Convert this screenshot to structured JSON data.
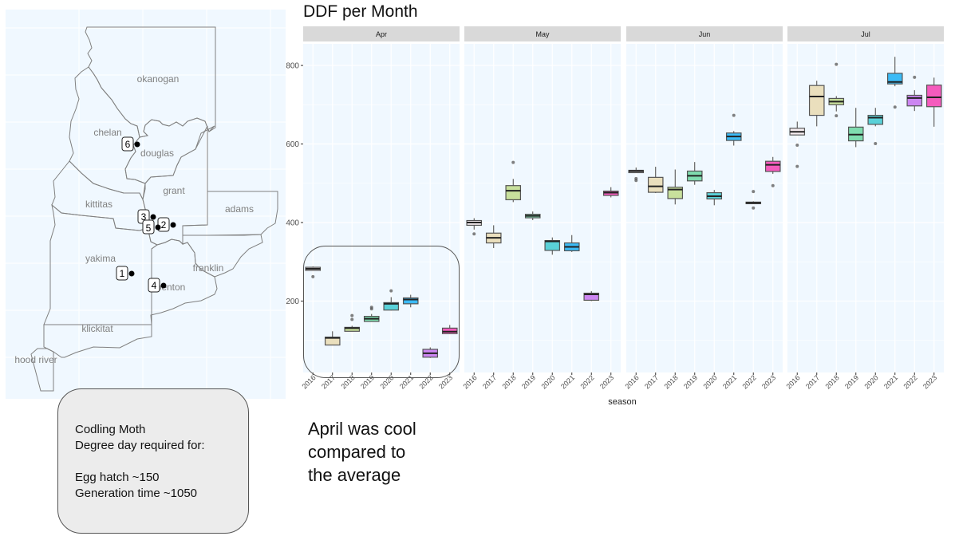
{
  "map": {
    "counties": [
      {
        "name": "okanogan"
      },
      {
        "name": "chelan"
      },
      {
        "name": "douglas"
      },
      {
        "name": "grant"
      },
      {
        "name": "kittitas"
      },
      {
        "name": "adams"
      },
      {
        "name": "yakima"
      },
      {
        "name": "franklin"
      },
      {
        "name": "benton"
      },
      {
        "name": "klickitat"
      },
      {
        "name": "hood river"
      }
    ],
    "sites": [
      {
        "label": "1"
      },
      {
        "label": "2"
      },
      {
        "label": "3"
      },
      {
        "label": "4"
      },
      {
        "label": "5"
      },
      {
        "label": "6"
      }
    ]
  },
  "info_box": {
    "line1": "Codling Moth",
    "line2": "Degree day required for:",
    "line3": "Egg hatch ~150",
    "line4": "Generation time ~1050"
  },
  "annotation": {
    "line1": "April was cool",
    "line2": "compared to",
    "line3": "the average"
  },
  "chart_data": {
    "type": "box",
    "title": "DDF per Month",
    "xlabel": "season",
    "ylabel": "",
    "ylim": [
      18,
      855
    ],
    "yticks": [
      200,
      400,
      600,
      800
    ],
    "grid": true,
    "facets": [
      "Apr",
      "May",
      "Jun",
      "Jul"
    ],
    "categories": [
      "2016",
      "2017",
      "2018",
      "2019",
      "2020",
      "2021",
      "2022",
      "2023"
    ],
    "colors": {
      "2016": "#f7eff2",
      "2017": "#eadfbd",
      "2018": "#c8e09c",
      "2019": "#7fdcaf",
      "2020": "#5ad1d8",
      "2021": "#3bbbf6",
      "2022": "#cc86f2",
      "2023": "#f55bbd"
    },
    "panels": [
      {
        "facet": "Apr",
        "boxes": [
          {
            "year": "2016",
            "min": 284,
            "q1": 278,
            "median": 282,
            "q3": 286,
            "max": 288,
            "outliers": [
              262
            ]
          },
          {
            "year": "2017",
            "min": 88,
            "q1": 88,
            "median": 106,
            "q3": 108,
            "max": 123,
            "outliers": []
          },
          {
            "year": "2018",
            "min": 123,
            "q1": 123,
            "median": 131,
            "q3": 133,
            "max": 137,
            "outliers": [
              153,
              163
            ]
          },
          {
            "year": "2019",
            "min": 148,
            "q1": 148,
            "median": 155,
            "q3": 161,
            "max": 167,
            "outliers": [
              180,
              184
            ]
          },
          {
            "year": "2020",
            "min": 176,
            "q1": 177,
            "median": 193,
            "q3": 196,
            "max": 210,
            "outliers": [
              226
            ]
          },
          {
            "year": "2021",
            "min": 184,
            "q1": 193,
            "median": 204,
            "q3": 208,
            "max": 216,
            "outliers": []
          },
          {
            "year": "2022",
            "min": 55,
            "q1": 57,
            "median": 67,
            "q3": 77,
            "max": 82,
            "outliers": []
          },
          {
            "year": "2023",
            "min": 116,
            "q1": 117,
            "median": 122,
            "q3": 131,
            "max": 139,
            "outliers": []
          }
        ]
      },
      {
        "facet": "May",
        "boxes": [
          {
            "year": "2016",
            "min": 382,
            "q1": 393,
            "median": 400,
            "q3": 405,
            "max": 411,
            "outliers": [
              371
            ]
          },
          {
            "year": "2017",
            "min": 335,
            "q1": 348,
            "median": 361,
            "q3": 373,
            "max": 393,
            "outliers": []
          },
          {
            "year": "2018",
            "min": 452,
            "q1": 458,
            "median": 481,
            "q3": 494,
            "max": 511,
            "outliers": [
              553
            ]
          },
          {
            "year": "2019",
            "min": 406,
            "q1": 412,
            "median": 417,
            "q3": 421,
            "max": 428,
            "outliers": []
          },
          {
            "year": "2020",
            "min": 318,
            "q1": 329,
            "median": 352,
            "q3": 354,
            "max": 362,
            "outliers": []
          },
          {
            "year": "2021",
            "min": 325,
            "q1": 328,
            "median": 338,
            "q3": 348,
            "max": 368,
            "outliers": []
          },
          {
            "year": "2022",
            "min": 200,
            "q1": 202,
            "median": 217,
            "q3": 220,
            "max": 225,
            "outliers": []
          },
          {
            "year": "2023",
            "min": 464,
            "q1": 469,
            "median": 476,
            "q3": 480,
            "max": 490,
            "outliers": []
          }
        ]
      },
      {
        "facet": "Jun",
        "boxes": [
          {
            "year": "2016",
            "min": 527,
            "q1": 527,
            "median": 531,
            "q3": 533,
            "max": 540,
            "outliers": [
              507,
              512
            ]
          },
          {
            "year": "2017",
            "min": 475,
            "q1": 477,
            "median": 492,
            "q3": 515,
            "max": 542,
            "outliers": []
          },
          {
            "year": "2018",
            "min": 446,
            "q1": 461,
            "median": 484,
            "q3": 490,
            "max": 535,
            "outliers": []
          },
          {
            "year": "2019",
            "min": 496,
            "q1": 506,
            "median": 519,
            "q3": 531,
            "max": 554,
            "outliers": []
          },
          {
            "year": "2020",
            "min": 444,
            "q1": 460,
            "median": 467,
            "q3": 476,
            "max": 483,
            "outliers": []
          },
          {
            "year": "2021",
            "min": 596,
            "q1": 609,
            "median": 619,
            "q3": 628,
            "max": 633,
            "outliers": [
              673
            ]
          },
          {
            "year": "2022",
            "min": 448,
            "q1": 448,
            "median": 450,
            "q3": 452,
            "max": 454,
            "outliers": [
              437,
              479
            ]
          },
          {
            "year": "2023",
            "min": 524,
            "q1": 530,
            "median": 547,
            "q3": 556,
            "max": 567,
            "outliers": [
              494
            ]
          }
        ]
      },
      {
        "facet": "Jul",
        "boxes": [
          {
            "year": "2016",
            "min": 628,
            "q1": 623,
            "median": 631,
            "q3": 640,
            "max": 657,
            "outliers": [
              597,
              543
            ]
          },
          {
            "year": "2017",
            "min": 645,
            "q1": 673,
            "median": 721,
            "q3": 749,
            "max": 761,
            "outliers": []
          },
          {
            "year": "2018",
            "min": 683,
            "q1": 700,
            "median": 708,
            "q3": 716,
            "max": 722,
            "outliers": [
              672,
              803
            ]
          },
          {
            "year": "2019",
            "min": 592,
            "q1": 608,
            "median": 624,
            "q3": 643,
            "max": 692,
            "outliers": []
          },
          {
            "year": "2020",
            "min": 645,
            "q1": 650,
            "median": 667,
            "q3": 673,
            "max": 692,
            "outliers": [
              601
            ]
          },
          {
            "year": "2021",
            "min": 747,
            "q1": 753,
            "median": 758,
            "q3": 780,
            "max": 822,
            "outliers": [
              694
            ]
          },
          {
            "year": "2022",
            "min": 684,
            "q1": 697,
            "median": 717,
            "q3": 724,
            "max": 737,
            "outliers": [
              770
            ]
          },
          {
            "year": "2023",
            "min": 644,
            "q1": 695,
            "median": 719,
            "q3": 750,
            "max": 769,
            "outliers": []
          }
        ]
      }
    ]
  }
}
